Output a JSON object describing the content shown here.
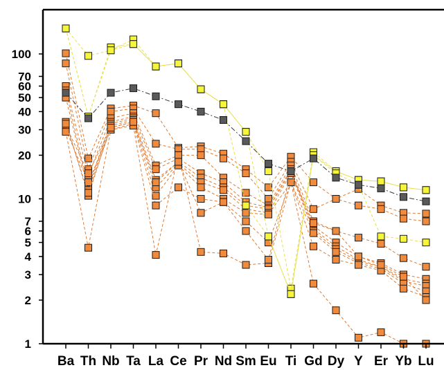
{
  "chart_data": {
    "type": "line",
    "title": "",
    "xlabel": "",
    "ylabel": "",
    "y_scale": "log",
    "ylim": [
      1,
      160
    ],
    "grid": false,
    "legend": "none",
    "categories": [
      "Ba",
      "Th",
      "Nb",
      "Ta",
      "La",
      "Ce",
      "Pr",
      "Nd",
      "Sm",
      "Eu",
      "Ti",
      "Gd",
      "Dy",
      "Y",
      "Er",
      "Yb",
      "Lu"
    ],
    "y_ticks": [
      1,
      2,
      3,
      4,
      5,
      6,
      7,
      10,
      20,
      30,
      40,
      50,
      60,
      70,
      100
    ],
    "colors": {
      "dark": {
        "fill": "#5a5a5a",
        "line": "#3a3a3a"
      },
      "yellow": {
        "fill": "#f5f53a",
        "line": "#e8e04a"
      },
      "orange": {
        "fill": "#f08a3c",
        "line": "#e07a30"
      }
    },
    "series": [
      {
        "group": "dark",
        "values": [
          54,
          36,
          54,
          58,
          51,
          45,
          40,
          35,
          25,
          17.5,
          15.5,
          19,
          14,
          12.5,
          11.8,
          10.3,
          9.6
        ]
      },
      {
        "group": "yellow",
        "values": [
          150,
          97,
          106,
          126,
          82,
          86,
          57,
          45,
          29,
          15.5,
          2.4,
          21,
          15.5,
          13.5,
          13.2,
          12,
          11.5
        ]
      },
      {
        "group": "yellow",
        "values": [
          150,
          37,
          111,
          117,
          82,
          86,
          57,
          45,
          29,
          5.5,
          2.2,
          20,
          15.5,
          13.5,
          13.2,
          12,
          11.5
        ]
      },
      {
        "group": "yellow",
        "values": [
          150,
          37,
          106,
          117,
          82,
          86,
          57,
          45,
          9,
          5.5,
          2.2,
          20,
          15,
          12.5,
          5.5,
          5.3,
          5
        ]
      },
      {
        "group": "orange",
        "values": [
          101,
          19,
          42,
          44,
          39,
          22.5,
          23,
          20.5,
          16,
          12,
          19.5,
          13,
          10,
          11.7,
          9,
          8,
          7.9
        ]
      },
      {
        "group": "orange",
        "values": [
          86,
          16,
          40,
          42,
          24,
          22,
          22,
          19,
          15,
          10,
          18,
          8.5,
          10,
          9,
          8.5,
          7.3,
          7
        ]
      },
      {
        "group": "orange",
        "values": [
          60,
          14.5,
          36,
          39,
          17,
          20,
          20,
          14,
          11,
          9,
          17,
          7,
          6,
          5.4,
          4.9,
          3.9,
          3.4
        ]
      },
      {
        "group": "orange",
        "values": [
          56,
          12,
          34,
          37,
          16,
          19,
          15,
          13,
          9.5,
          8.7,
          16,
          6.5,
          5,
          4,
          3.6,
          3,
          2.8
        ]
      },
      {
        "group": "orange",
        "values": [
          50,
          11.5,
          33,
          36,
          13.5,
          18,
          14,
          12,
          9,
          8.5,
          15.5,
          6.2,
          4.7,
          3.8,
          3.4,
          2.8,
          2.6
        ]
      },
      {
        "group": "orange",
        "values": [
          34,
          10.5,
          32,
          35,
          12,
          17.5,
          13,
          11.5,
          8.5,
          8,
          15,
          6,
          4.5,
          3.7,
          3.4,
          2.7,
          2.5
        ]
      },
      {
        "group": "orange",
        "values": [
          32,
          15,
          31,
          34,
          10.5,
          17,
          12,
          10,
          8,
          7.8,
          13,
          5.8,
          4.3,
          3.6,
          3.3,
          2.6,
          2.3
        ]
      },
      {
        "group": "orange",
        "values": [
          30,
          13,
          30,
          33,
          9,
          12,
          10,
          9.5,
          7,
          5,
          13,
          4.7,
          3.8,
          3.5,
          3.2,
          2.4,
          2.1
        ]
      },
      {
        "group": "orange",
        "values": [
          29,
          4.6,
          30,
          32,
          4.1,
          20,
          4.3,
          4.2,
          3.5,
          3.6,
          13,
          2.6,
          1.7,
          1.1,
          1.2,
          1,
          1
        ]
      },
      {
        "group": "orange",
        "values": [
          33,
          11,
          31,
          34,
          13,
          18,
          8,
          9.5,
          6,
          3.8,
          15,
          6.8,
          6,
          4,
          3.5,
          2.9,
          2
        ]
      }
    ]
  }
}
